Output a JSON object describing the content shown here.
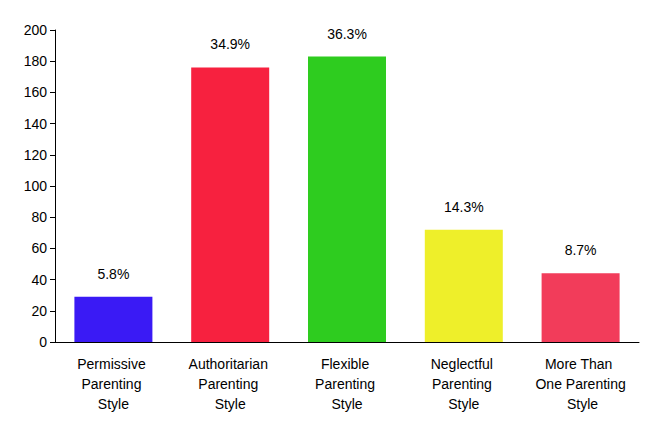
{
  "chart_data": {
    "type": "bar",
    "categories": [
      "Permissive Parenting Style",
      "Authoritarian Parenting Style",
      "Flexible Parenting Style",
      "Neglectful Parenting Style",
      "More Than One Parenting Style"
    ],
    "values": [
      29,
      176,
      183,
      72,
      44
    ],
    "annotations": [
      "5.8%",
      "34.9%",
      "36.3%",
      "14.3%",
      "8.7%"
    ],
    "colors": [
      "#3a1af5",
      "#f7213f",
      "#2ecc1f",
      "#eeef2a",
      "#f23c5a"
    ],
    "ylim": [
      0,
      200
    ],
    "yticks": [
      0,
      20,
      40,
      60,
      80,
      100,
      120,
      140,
      160,
      180,
      200
    ],
    "grid": false
  }
}
